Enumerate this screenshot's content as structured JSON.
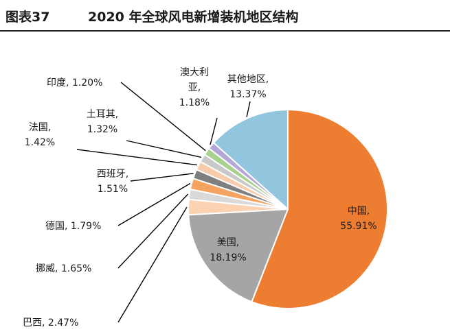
{
  "figure": {
    "number": "图表37",
    "title": "2020 年全球风电新增装机地区结构"
  },
  "chart_data": {
    "type": "pie",
    "title": "2020 年全球风电新增装机地区结构",
    "slices": [
      {
        "label": "中国",
        "value": 55.91,
        "value_label": "55.91%",
        "color": "#ED7D31"
      },
      {
        "label": "美国",
        "value": 18.19,
        "value_label": "18.19%",
        "color": "#A5A5A5"
      },
      {
        "label": "巴西",
        "value": 2.47,
        "value_label": "2.47%",
        "color": "#FBD3B2"
      },
      {
        "label": "挪威",
        "value": 1.65,
        "value_label": "1.65%",
        "color": "#D9D9D9"
      },
      {
        "label": "德国",
        "value": 1.79,
        "value_label": "1.79%",
        "color": "#F4A460"
      },
      {
        "label": "西班牙",
        "value": 1.51,
        "value_label": "1.51%",
        "color": "#7F7F7F"
      },
      {
        "label": "法国",
        "value": 1.42,
        "value_label": "1.42%",
        "color": "#F8CBAD"
      },
      {
        "label": "土耳其",
        "value": 1.32,
        "value_label": "1.32%",
        "color": "#C9C9C9"
      },
      {
        "label": "印度",
        "value": 1.2,
        "value_label": "1.20%",
        "color": "#A9D18E"
      },
      {
        "label": "澳大利亚",
        "value": 1.18,
        "value_label": "1.18%",
        "color": "#B4A7D6"
      },
      {
        "label": "其他地区",
        "value": 13.37,
        "value_label": "13.37%",
        "color": "#92C5DE"
      }
    ],
    "start_angle_deg": 0,
    "direction": "clockwise"
  }
}
